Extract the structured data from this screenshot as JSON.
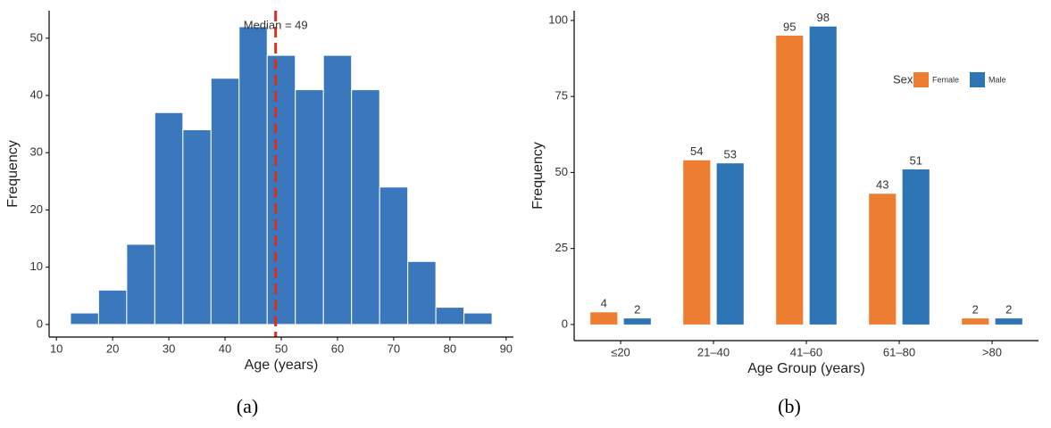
{
  "chart_data": [
    {
      "type": "histogram",
      "caption": "(a)",
      "xlabel": "Age (years)",
      "ylabel": "Frequency",
      "bins": [
        12.5,
        17.5,
        22.5,
        27.5,
        32.5,
        37.5,
        42.5,
        47.5,
        52.5,
        57.5,
        62.5,
        67.5,
        72.5,
        77.5,
        82.5,
        87.5
      ],
      "values": [
        2,
        6,
        14,
        37,
        34,
        43,
        52,
        47,
        41,
        47,
        41,
        24,
        11,
        3,
        2
      ],
      "color": "#3a77bc",
      "xlim": [
        8.7,
        91.3
      ],
      "xticks": [
        10,
        20,
        30,
        40,
        50,
        60,
        70,
        80,
        90
      ],
      "ylim": [
        -2.2,
        54.8
      ],
      "yticks": [
        0,
        10,
        20,
        30,
        40,
        50
      ],
      "median": 49,
      "median_label": "Median = 49",
      "median_color": "#d7301f"
    },
    {
      "type": "bar",
      "caption": "(b)",
      "xlabel": "Age Group (years)",
      "ylabel": "Frequency",
      "categories": [
        "≤20",
        "21–40",
        "41–60",
        "61–80",
        ">80"
      ],
      "legend_title": "Sex",
      "legend": "top-right",
      "series": [
        {
          "name": "Female",
          "color": "#ed7d31",
          "values": [
            4,
            54,
            95,
            43,
            2
          ]
        },
        {
          "name": "Male",
          "color": "#2e75b6",
          "values": [
            2,
            53,
            98,
            51,
            2
          ]
        }
      ],
      "ylim": [
        -5.3,
        103.2
      ],
      "yticks": [
        0,
        25,
        50,
        75,
        100
      ]
    }
  ]
}
